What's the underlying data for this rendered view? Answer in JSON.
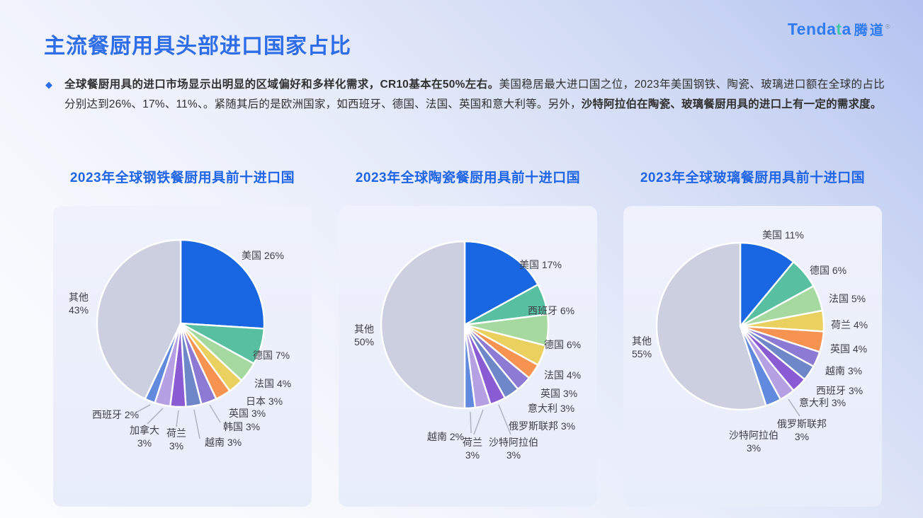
{
  "header": {
    "title": "主流餐厨用具头部进口国家占比"
  },
  "logo": {
    "prefix": "Tenda",
    "accent": "t",
    "suffix": "a",
    "cn": "腾道",
    "reg": "®"
  },
  "intro": {
    "bullet": "◆",
    "segments": [
      {
        "text": "全球餐厨用具的进口市场显示出明显的区域偏好和多样化需求，CR10基本在50%左右。",
        "bold": true
      },
      {
        "text": "美国稳居最大进口国之位，2023年美国钢铁、陶瓷、玻璃进口额在全球的占比分别达到26%、17%、11%、。紧随其后的是欧洲国家，如西班牙、德国、法国、英国和意大利等。另外，",
        "bold": false
      },
      {
        "text": "沙特阿拉伯在陶瓷、玻璃餐厨用具的进口上有一定的需求度。",
        "bold": true
      }
    ]
  },
  "chart_data": [
    {
      "type": "pie",
      "title": "2023年全球钢铁餐厨用具前十进口国",
      "unit": "%",
      "legend_position": "none",
      "labels": "outside-with-leaders",
      "series": [
        {
          "name": "美国",
          "value": 26
        },
        {
          "name": "德国",
          "value": 7
        },
        {
          "name": "法国",
          "value": 4
        },
        {
          "name": "日本",
          "value": 3
        },
        {
          "name": "英国",
          "value": 3
        },
        {
          "name": "韩国",
          "value": 3
        },
        {
          "name": "越南",
          "value": 3
        },
        {
          "name": "荷兰",
          "value": 3
        },
        {
          "name": "加拿大",
          "value": 3
        },
        {
          "name": "西班牙",
          "value": 2
        },
        {
          "name": "其他",
          "value": 43
        }
      ]
    },
    {
      "type": "pie",
      "title": "2023年全球陶瓷餐厨用具前十进口国",
      "unit": "%",
      "legend_position": "none",
      "labels": "outside-with-leaders",
      "series": [
        {
          "name": "美国",
          "value": 17
        },
        {
          "name": "西班牙",
          "value": 6
        },
        {
          "name": "德国",
          "value": 6
        },
        {
          "name": "法国",
          "value": 4
        },
        {
          "name": "英国",
          "value": 3
        },
        {
          "name": "意大利",
          "value": 3
        },
        {
          "name": "俄罗斯联邦",
          "value": 3
        },
        {
          "name": "沙特阿拉伯",
          "value": 3
        },
        {
          "name": "荷兰",
          "value": 3
        },
        {
          "name": "越南",
          "value": 2
        },
        {
          "name": "其他",
          "value": 50
        }
      ]
    },
    {
      "type": "pie",
      "title": "2023年全球玻璃餐厨用具前十进口国",
      "unit": "%",
      "legend_position": "none",
      "labels": "outside-with-leaders",
      "series": [
        {
          "name": "美国",
          "value": 11
        },
        {
          "name": "德国",
          "value": 6
        },
        {
          "name": "法国",
          "value": 5
        },
        {
          "name": "荷兰",
          "value": 4
        },
        {
          "name": "英国",
          "value": 4
        },
        {
          "name": "越南",
          "value": 3
        },
        {
          "name": "西班牙",
          "value": 3
        },
        {
          "name": "意大利",
          "value": 3
        },
        {
          "name": "俄罗斯联邦",
          "value": 3
        },
        {
          "name": "沙特阿拉伯",
          "value": 3
        },
        {
          "name": "其他",
          "value": 55
        }
      ]
    }
  ],
  "palette": {
    "slices": [
      "#1866e2",
      "#58c0a1",
      "#a6d9a0",
      "#ead05f",
      "#f79350",
      "#8c7ad4",
      "#6e87c9",
      "#8a5cd4",
      "#b4a0e2",
      "#618ade"
    ],
    "other": "#cbcfdf",
    "main_title_blue": "#2e6de8",
    "chart_title_blue": "#1f65e5",
    "label_text": "#3f4048",
    "leader_gray": "#b4b6c0"
  }
}
